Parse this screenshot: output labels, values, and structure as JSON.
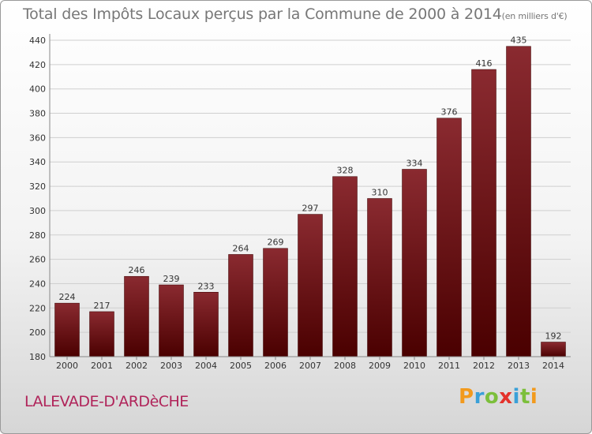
{
  "title": "Total des Impôts Locaux perçus par la Commune de 2000 à 2014",
  "title_unit": "(en milliers d'€)",
  "commune": "LALEVADE-D'ARDèCHE",
  "logo_letters": [
    "P",
    "r",
    "o",
    "x",
    "i",
    "t",
    "i"
  ],
  "colors": {
    "bar_top": "#8a2a30",
    "bar_bottom": "#4a0000",
    "grid": "#cfcfcf"
  },
  "chart_data": {
    "type": "bar",
    "title": "Total des Impôts Locaux perçus par la Commune de 2000 à 2014",
    "xlabel": "",
    "ylabel": "",
    "categories": [
      "2000",
      "2001",
      "2002",
      "2003",
      "2004",
      "2005",
      "2006",
      "2007",
      "2008",
      "2009",
      "2010",
      "2011",
      "2012",
      "2013",
      "2014"
    ],
    "values": [
      224,
      217,
      246,
      239,
      233,
      264,
      269,
      297,
      328,
      310,
      334,
      376,
      416,
      435,
      192
    ],
    "ylim": [
      180,
      440
    ],
    "yticks": [
      180,
      200,
      220,
      240,
      260,
      280,
      300,
      320,
      340,
      360,
      380,
      400,
      420,
      440
    ],
    "grid": true
  }
}
